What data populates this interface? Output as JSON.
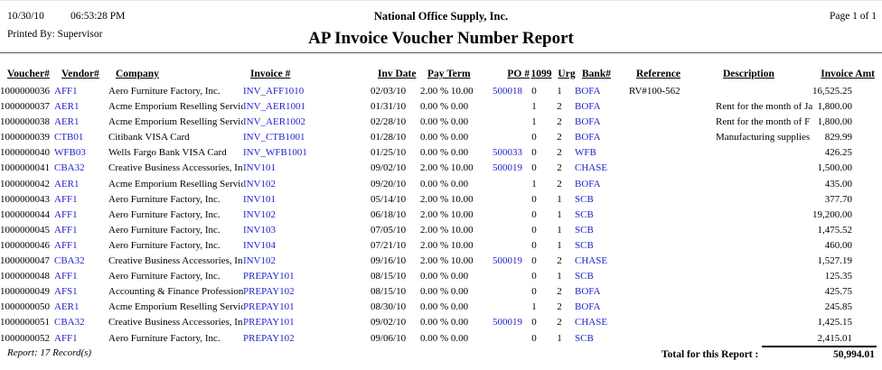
{
  "header": {
    "date": "10/30/10",
    "time": "06:53:28 PM",
    "company_name": "National Office Supply, Inc.",
    "page_label": "Page 1 of 1",
    "printed_by": "Printed By: Supervisor",
    "title": "AP Invoice Voucher Number Report"
  },
  "colors": {
    "link_blue": "#2222CC",
    "text": "#000000"
  },
  "table": {
    "columns": [
      "Voucher#",
      "Vendor#",
      "Company",
      "Invoice #",
      "Inv Date",
      "Pay Term",
      "PO #",
      "1099",
      "Urg",
      "Bank#",
      "Reference",
      "Description",
      "Invoice Amt"
    ],
    "rows": [
      {
        "voucher": "1000000036",
        "vendor": "AFF1",
        "company": "Aero Furniture Factory, Inc.",
        "invoice": "INV_AFF1010",
        "inv_date": "02/03/10",
        "pay_term": "2.00 % 10.00",
        "po": "500018",
        "t1099": "0",
        "urg": "1",
        "bank": "BOFA",
        "reference": "RV#100-562",
        "description": "",
        "amount": "16,525.25"
      },
      {
        "voucher": "1000000037",
        "vendor": "AER1",
        "company": "Acme Emporium Reselling Servic",
        "invoice": "INV_AER1001",
        "inv_date": "01/31/10",
        "pay_term": "0.00 % 0.00",
        "po": "",
        "t1099": "1",
        "urg": "2",
        "bank": "BOFA",
        "reference": "",
        "description": "Rent for the month of Ja",
        "amount": "1,800.00"
      },
      {
        "voucher": "1000000038",
        "vendor": "AER1",
        "company": "Acme Emporium Reselling Servic",
        "invoice": "INV_AER1002",
        "inv_date": "02/28/10",
        "pay_term": "0.00 % 0.00",
        "po": "",
        "t1099": "1",
        "urg": "2",
        "bank": "BOFA",
        "reference": "",
        "description": "Rent for the month of F",
        "amount": "1,800.00"
      },
      {
        "voucher": "1000000039",
        "vendor": "CTB01",
        "company": "Citibank VISA Card",
        "invoice": "INV_CTB1001",
        "inv_date": "01/28/10",
        "pay_term": "0.00 % 0.00",
        "po": "",
        "t1099": "0",
        "urg": "2",
        "bank": "BOFA",
        "reference": "",
        "description": "Manufacturing supplies",
        "amount": "829.99"
      },
      {
        "voucher": "1000000040",
        "vendor": "WFB03",
        "company": "Wells Fargo Bank VISA Card",
        "invoice": "INV_WFB1001",
        "inv_date": "01/25/10",
        "pay_term": "0.00 % 0.00",
        "po": "500033",
        "t1099": "0",
        "urg": "2",
        "bank": "WFB",
        "reference": "",
        "description": "",
        "amount": "426.25"
      },
      {
        "voucher": "1000000041",
        "vendor": "CBA32",
        "company": "Creative Business Accessories, In",
        "invoice": "INV101",
        "inv_date": "09/02/10",
        "pay_term": "2.00 % 10.00",
        "po": "500019",
        "t1099": "0",
        "urg": "2",
        "bank": "CHASE",
        "reference": "",
        "description": "",
        "amount": "1,500.00"
      },
      {
        "voucher": "1000000042",
        "vendor": "AER1",
        "company": "Acme Emporium Reselling Servic",
        "invoice": "INV102",
        "inv_date": "09/20/10",
        "pay_term": "0.00 % 0.00",
        "po": "",
        "t1099": "1",
        "urg": "2",
        "bank": "BOFA",
        "reference": "",
        "description": "",
        "amount": "435.00"
      },
      {
        "voucher": "1000000043",
        "vendor": "AFF1",
        "company": "Aero Furniture Factory, Inc.",
        "invoice": "INV101",
        "inv_date": "05/14/10",
        "pay_term": "2.00 % 10.00",
        "po": "",
        "t1099": "0",
        "urg": "1",
        "bank": "SCB",
        "reference": "",
        "description": "",
        "amount": "377.70"
      },
      {
        "voucher": "1000000044",
        "vendor": "AFF1",
        "company": "Aero Furniture Factory, Inc.",
        "invoice": "INV102",
        "inv_date": "06/18/10",
        "pay_term": "2.00 % 10.00",
        "po": "",
        "t1099": "0",
        "urg": "1",
        "bank": "SCB",
        "reference": "",
        "description": "",
        "amount": "19,200.00"
      },
      {
        "voucher": "1000000045",
        "vendor": "AFF1",
        "company": "Aero Furniture Factory, Inc.",
        "invoice": "INV103",
        "inv_date": "07/05/10",
        "pay_term": "2.00 % 10.00",
        "po": "",
        "t1099": "0",
        "urg": "1",
        "bank": "SCB",
        "reference": "",
        "description": "",
        "amount": "1,475.52"
      },
      {
        "voucher": "1000000046",
        "vendor": "AFF1",
        "company": "Aero Furniture Factory, Inc.",
        "invoice": "INV104",
        "inv_date": "07/21/10",
        "pay_term": "2.00 % 10.00",
        "po": "",
        "t1099": "0",
        "urg": "1",
        "bank": "SCB",
        "reference": "",
        "description": "",
        "amount": "460.00"
      },
      {
        "voucher": "1000000047",
        "vendor": "CBA32",
        "company": "Creative Business Accessories, In",
        "invoice": "INV102",
        "inv_date": "09/16/10",
        "pay_term": "2.00 % 10.00",
        "po": "500019",
        "t1099": "0",
        "urg": "2",
        "bank": "CHASE",
        "reference": "",
        "description": "",
        "amount": "1,527.19"
      },
      {
        "voucher": "1000000048",
        "vendor": "AFF1",
        "company": "Aero Furniture Factory, Inc.",
        "invoice": "PREPAY101",
        "inv_date": "08/15/10",
        "pay_term": "0.00 % 0.00",
        "po": "",
        "t1099": "0",
        "urg": "1",
        "bank": "SCB",
        "reference": "",
        "description": "",
        "amount": "125.35"
      },
      {
        "voucher": "1000000049",
        "vendor": "AFS1",
        "company": "Accounting & Finance Profession",
        "invoice": "PREPAY102",
        "inv_date": "08/15/10",
        "pay_term": "0.00 % 0.00",
        "po": "",
        "t1099": "0",
        "urg": "2",
        "bank": "BOFA",
        "reference": "",
        "description": "",
        "amount": "425.75"
      },
      {
        "voucher": "1000000050",
        "vendor": "AER1",
        "company": "Acme Emporium Reselling Servic",
        "invoice": "PREPAY101",
        "inv_date": "08/30/10",
        "pay_term": "0.00 % 0.00",
        "po": "",
        "t1099": "1",
        "urg": "2",
        "bank": "BOFA",
        "reference": "",
        "description": "",
        "amount": "245.85"
      },
      {
        "voucher": "1000000051",
        "vendor": "CBA32",
        "company": "Creative Business Accessories, In",
        "invoice": "PREPAY101",
        "inv_date": "09/02/10",
        "pay_term": "0.00 % 0.00",
        "po": "500019",
        "t1099": "0",
        "urg": "2",
        "bank": "CHASE",
        "reference": "",
        "description": "",
        "amount": "1,425.15"
      },
      {
        "voucher": "1000000052",
        "vendor": "AFF1",
        "company": "Aero Furniture Factory, Inc.",
        "invoice": "PREPAY102",
        "inv_date": "09/06/10",
        "pay_term": "0.00 % 0.00",
        "po": "",
        "t1099": "0",
        "urg": "1",
        "bank": "SCB",
        "reference": "",
        "description": "",
        "amount": "2,415.01"
      }
    ]
  },
  "footer": {
    "record_count": "Report: 17 Record(s)",
    "total_label": "Total for this Report :",
    "total_amount": "50,994.01"
  }
}
